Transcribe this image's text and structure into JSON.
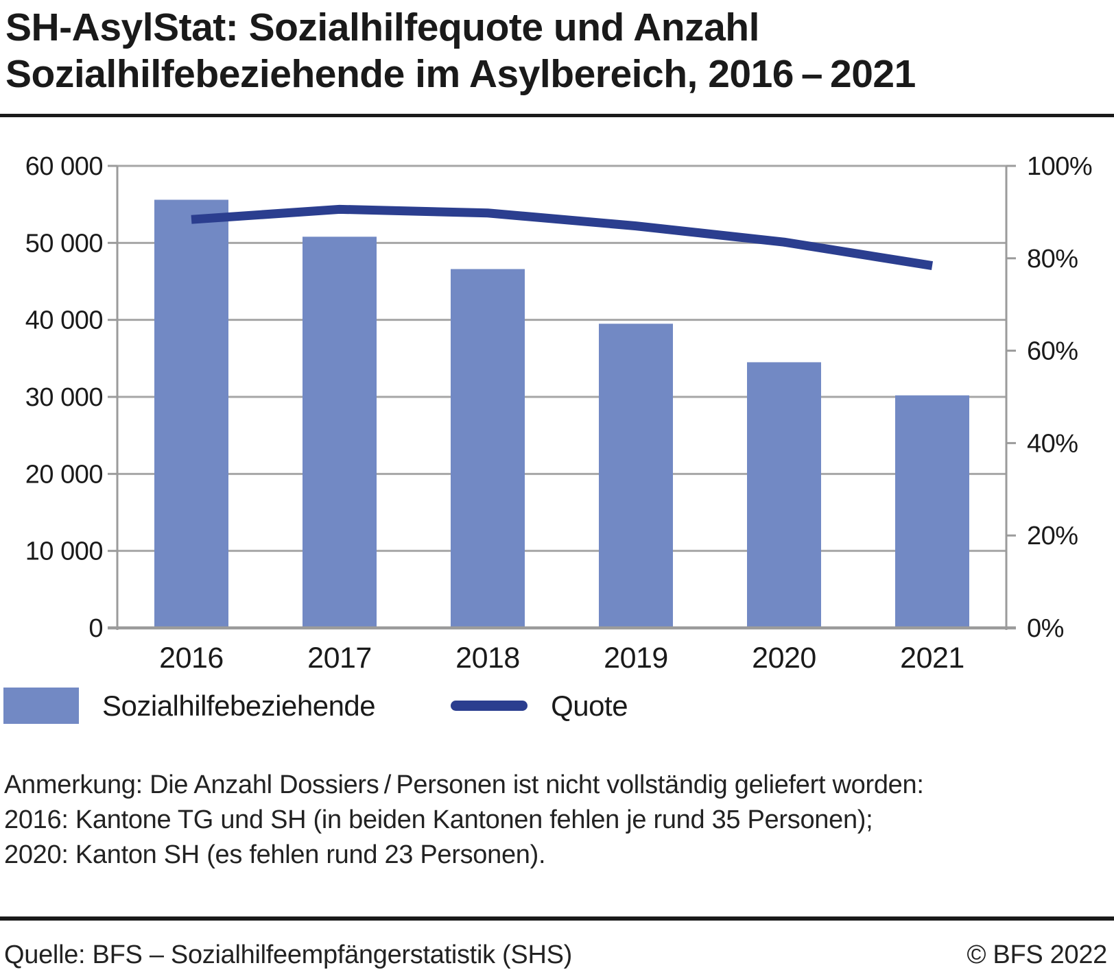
{
  "header": {
    "title_line1": "SH-AsylStat: Sozialhilfequote und Anzahl",
    "title_line2": "Sozialhilfebeziehende im Asylbereich, 2016 – 2021"
  },
  "chart_data": {
    "type": "bar",
    "subtype": "bar+line combo, dual axis",
    "categories": [
      "2016",
      "2017",
      "2018",
      "2019",
      "2020",
      "2021"
    ],
    "series": [
      {
        "name": "Sozialhilfebeziehende",
        "type": "bar",
        "axis": "left",
        "values": [
          55600,
          50800,
          46600,
          39500,
          34500,
          30200
        ],
        "color": "#7289c4"
      },
      {
        "name": "Quote",
        "type": "line",
        "axis": "right",
        "values": [
          88.4,
          90.6,
          89.8,
          87.0,
          83.5,
          78.4
        ],
        "color": "#2b3e8f"
      }
    ],
    "left_axis": {
      "min": 0,
      "max": 60000,
      "step": 10000,
      "tick_labels": [
        "0",
        "10 000",
        "20 000",
        "30 000",
        "40 000",
        "50 000",
        "60 000"
      ]
    },
    "right_axis": {
      "min": 0,
      "max": 100,
      "step": 20,
      "unit": "%",
      "tick_labels": [
        "0%",
        "20%",
        "40%",
        "60%",
        "80%",
        "100%"
      ]
    },
    "grid": "horizontal gridlines at left-axis steps, gray",
    "legend_position": "bottom-left",
    "colors": {
      "grid": "#a6a6a6",
      "axis": "#9b9b9b",
      "tick_text": "#1a1a1a"
    }
  },
  "notes": [
    "Anmerkung: Die Anzahl Dossiers / Personen ist nicht vollständig geliefert worden:",
    "2016: Kantone TG und SH (in beiden Kantonen fehlen je rund 35 Personen);",
    "2020: Kanton SH (es fehlen rund 23 Personen)."
  ],
  "footer": {
    "source": "Quelle: BFS – Sozialhilfeempfängerstatistik (SHS)",
    "copyright": "© BFS 2022"
  }
}
